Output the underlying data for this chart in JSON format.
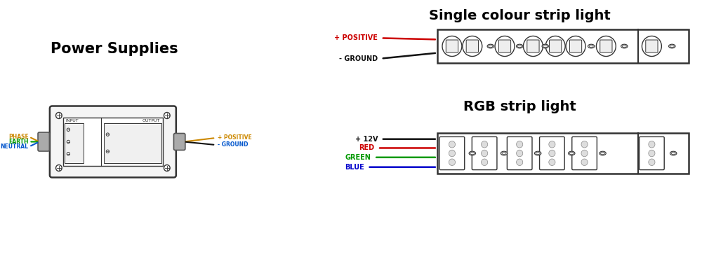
{
  "bg_color": "#ffffff",
  "title_color": "#000000",
  "ps_title": "Power Supplies",
  "sc_title": "Single colour strip light",
  "rgb_title": "RGB strip light",
  "phase_color": "#cc8800",
  "earth_color": "#009900",
  "neutral_color": "#0055cc",
  "positive_color": "#cc8800",
  "ground_label_color": "#0055cc",
  "red_color": "#cc0000",
  "green_color": "#009900",
  "blue_color": "#0000cc",
  "black_color": "#111111",
  "strip_border_color": "#333333",
  "box_color": "#333333",
  "connector_color": "#888888",
  "layout": {
    "fig_w": 10.0,
    "fig_h": 4.0,
    "dpi": 100
  }
}
